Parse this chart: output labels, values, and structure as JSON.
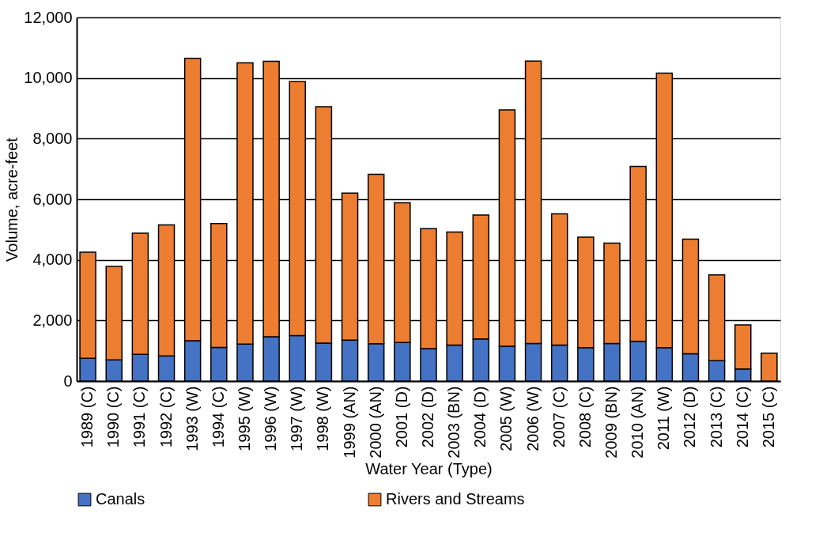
{
  "chart_data": {
    "type": "bar",
    "stacked": true,
    "xlabel": "Water Year (Type)",
    "ylabel": "Volume, acre-feet",
    "categories": [
      "1989 (C)",
      "1990 (C)",
      "1991 (C)",
      "1992 (C)",
      "1993 (W)",
      "1994 (C)",
      "1995 (W)",
      "1996 (W)",
      "1997 (W)",
      "1998 (W)",
      "1999 (AN)",
      "2000 (AN)",
      "2001 (D)",
      "2002 (D)",
      "2003 (BN)",
      "2004 (D)",
      "2005 (W)",
      "2006 (W)",
      "2007 (C)",
      "2008 (C)",
      "2009 (BN)",
      "2010 (AN)",
      "2011 (W)",
      "2012 (D)",
      "2013 (C)",
      "2014 (C)",
      "2015 (C)"
    ],
    "series": [
      {
        "name": "Canals",
        "color": "#4472c4",
        "values": [
          750,
          700,
          880,
          830,
          1330,
          1110,
          1220,
          1460,
          1500,
          1250,
          1350,
          1230,
          1270,
          1070,
          1190,
          1390,
          1150,
          1240,
          1190,
          1100,
          1240,
          1310,
          1100,
          900,
          670,
          400,
          0
        ]
      },
      {
        "name": "Rivers and Streams",
        "color": "#ed7d31",
        "values": [
          3500,
          3080,
          4000,
          4320,
          9320,
          4090,
          9280,
          9090,
          8380,
          7800,
          4850,
          5590,
          4610,
          3960,
          3730,
          4090,
          7800,
          9320,
          4330,
          3650,
          3310,
          5770,
          9060,
          3780,
          2830,
          1450,
          920
        ]
      }
    ],
    "ylim": [
      0,
      12000
    ],
    "yticks": [
      0,
      {
        "value": 2000,
        "label": "2,000"
      },
      {
        "value": 4000,
        "label": "4,000"
      },
      {
        "value": 6000,
        "label": "6,000"
      },
      {
        "value": 8000,
        "label": "8,000"
      },
      {
        "value": 10000,
        "label": "10,000"
      },
      {
        "value": 12000,
        "label": "12,000"
      }
    ],
    "grid": "y",
    "legend": "bottom"
  }
}
